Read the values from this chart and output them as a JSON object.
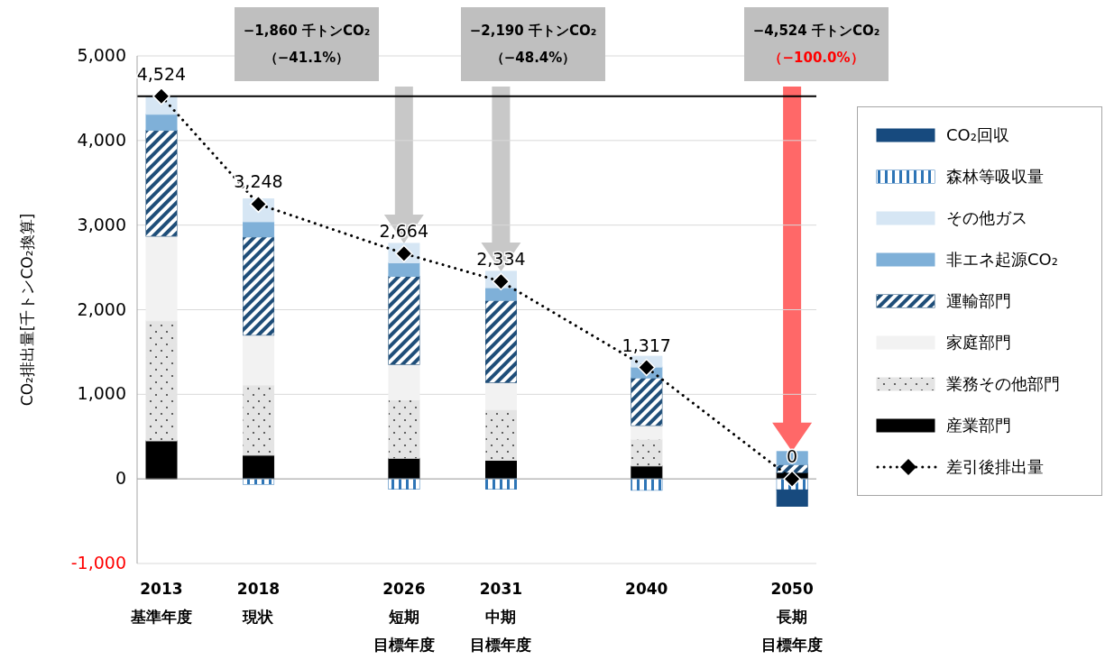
{
  "chart_data": {
    "type": "bar",
    "stacked": true,
    "ylabel": "CO₂排出量[千トンCO₂換算]",
    "categories": [
      "2013\n基準年度",
      null,
      "2018\n現状",
      null,
      null,
      "2026\n短期目標年度",
      null,
      "2031\n中期目標年度",
      null,
      null,
      "2040",
      null,
      null,
      "2050\n長期目標年度"
    ],
    "series": [
      {
        "name": "産業部門",
        "color": "#000000",
        "values": [
          450,
          null,
          280,
          null,
          null,
          244,
          null,
          220,
          null,
          null,
          153,
          null,
          null,
          75
        ]
      },
      {
        "name": "業務その他部門",
        "color": "#e4e4e4",
        "values": [
          1420,
          null,
          830,
          null,
          null,
          690,
          null,
          600,
          null,
          null,
          316,
          null,
          null,
          0
        ]
      },
      {
        "name": "家庭部門",
        "color": "#f2f2f2",
        "values": [
          1000,
          null,
          590,
          null,
          null,
          420,
          null,
          320,
          null,
          null,
          163,
          null,
          null,
          0
        ]
      },
      {
        "name": "運輸部門",
        "color": "#1f4e79",
        "values": [
          1250,
          null,
          1160,
          null,
          null,
          1040,
          null,
          970,
          null,
          null,
          562,
          null,
          null,
          95
        ]
      },
      {
        "name": "非エネ起源CO₂",
        "color": "#7fb0d8",
        "values": [
          190,
          null,
          180,
          null,
          null,
          160,
          null,
          150,
          null,
          null,
          128,
          null,
          null,
          153
        ]
      },
      {
        "name": "その他ガス",
        "color": "#d6e6f4",
        "values": [
          214,
          null,
          270,
          null,
          null,
          230,
          null,
          194,
          null,
          null,
          128,
          null,
          null,
          0
        ]
      },
      {
        "name": "森林等吸収量",
        "color": "#2e75b6",
        "values": [
          0,
          null,
          -62,
          null,
          null,
          -120,
          null,
          -120,
          null,
          null,
          -133,
          null,
          null,
          -130
        ]
      },
      {
        "name": "CO₂回収",
        "color": "#174a7e",
        "values": [
          0,
          null,
          0,
          null,
          null,
          0,
          null,
          0,
          null,
          null,
          0,
          null,
          null,
          -193
        ]
      },
      {
        "name": "差引後排出量",
        "type": "line",
        "color": "#000000",
        "marker": "diamond",
        "line_style": "dotted",
        "values": [
          4524,
          null,
          3248,
          null,
          null,
          2664,
          null,
          2334,
          null,
          null,
          1317,
          null,
          null,
          0
        ],
        "value_labels": [
          "4,524",
          null,
          "3,248",
          null,
          null,
          "2,664",
          null,
          "2,334",
          null,
          null,
          "1,317",
          null,
          null,
          "0"
        ]
      }
    ],
    "ylim": [
      -1000,
      5000
    ],
    "yticks": [
      {
        "value": -1000,
        "label": "-1,000"
      },
      0,
      {
        "value": 1000,
        "label": "1,000"
      },
      {
        "value": 2000,
        "label": "2,000"
      },
      {
        "value": 3000,
        "label": "3,000"
      },
      {
        "value": 4000,
        "label": "4,000"
      },
      {
        "value": 5000,
        "label": "5,000"
      }
    ],
    "grid": "y",
    "legend": "right",
    "ref_lines": [
      {
        "axis": "y",
        "value": 4524,
        "color": "#000000"
      }
    ],
    "annotations": [
      "−1,860 千トンCO₂\n（−41.1%）",
      "−2,190 千トンCO₂\n（−48.4%）",
      "−4,524 千トンCO₂\n（−100.0%）"
    ]
  }
}
